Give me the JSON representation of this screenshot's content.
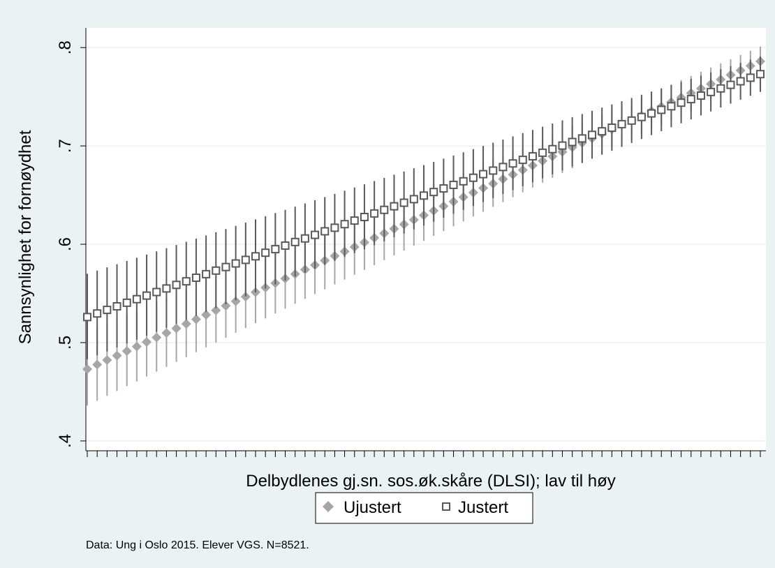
{
  "chart_data": {
    "type": "scatter",
    "ylabel": "Sannsynlighet for fornøydhet",
    "xlabel": "Delbydlenes gj.sn. sos.øk.skåre (DLSI); lav til høy",
    "ylim": [
      0.4,
      0.8
    ],
    "yticks": [
      0.4,
      0.5,
      0.6,
      0.7,
      0.8
    ],
    "ytick_labels": [
      ".4",
      ".5",
      ".6",
      ".7",
      ".8"
    ],
    "xtick_count": 69,
    "x_tick_labels_shown": false,
    "grid": true,
    "legend_position": "bottom-center",
    "note": "Data: Ung i Oslo 2015. Elever VGS. N=8521.",
    "series": [
      {
        "name": "Ujustert",
        "marker": "diamond",
        "color": "#a6a6a6",
        "start": 0.473,
        "end": 0.786,
        "ci_low_start": 0.436,
        "ci_high_start": 0.511,
        "ci_low_end": 0.771,
        "ci_high_end": 0.801
      },
      {
        "name": "Justert",
        "marker": "hollow-square",
        "color": "#595959",
        "start": 0.526,
        "end": 0.773,
        "ci_low_start": 0.483,
        "ci_high_start": 0.57,
        "ci_low_end": 0.755,
        "ci_high_end": 0.791
      }
    ]
  },
  "colors": {
    "background": "#eaf2f3",
    "plot_bg": "#ffffff",
    "grid": "#eaf2f3"
  }
}
